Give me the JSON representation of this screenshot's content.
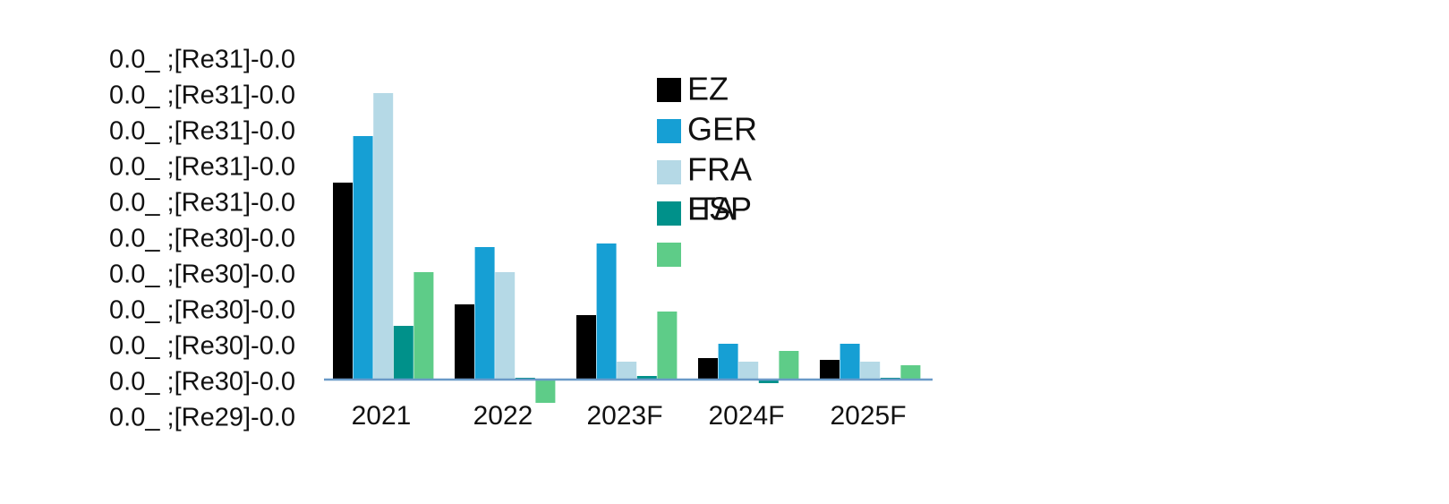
{
  "chart_data": {
    "type": "bar",
    "title": "",
    "xlabel": "",
    "ylabel": "",
    "categories": [
      "2021",
      "2022",
      "2023F",
      "2024F",
      "2025F"
    ],
    "y_tick_labels": [
      "0.0_ ;[Re31]-0.0",
      "0.0_ ;[Re31]-0.0",
      "0.0_ ;[Re31]-0.0",
      "0.0_ ;[Re31]-0.0",
      "0.0_ ;[Re31]-0.0",
      "0.0_ ;[Re30]-0.0",
      "0.0_ ;[Re30]-0.0",
      "0.0_ ;[Re30]-0.0",
      "0.0_ ;[Re30]-0.0",
      "0.0_ ;[Re30]-0.0",
      "0.0_ ;[Re29]-0.0"
    ],
    "ylim": [
      -1,
      9
    ],
    "grid": false,
    "legend_position": "top-center",
    "series": [
      {
        "name": "EZ",
        "color": "#000000",
        "values": [
          5.5,
          2.1,
          1.8,
          0.6,
          0.55
        ]
      },
      {
        "name": "GER",
        "color": "#169FD4",
        "values": [
          6.8,
          3.7,
          3.8,
          1.0,
          1.0
        ]
      },
      {
        "name": "FRA",
        "color": "#B5D9E6",
        "values": [
          8.0,
          3.0,
          0.5,
          0.5,
          0.5
        ]
      },
      {
        "name": "ITA",
        "color": "#00918A",
        "values": [
          1.5,
          0.05,
          0.1,
          -0.1,
          0.05
        ]
      },
      {
        "name": "ESP",
        "color": "#5ECC88",
        "values": [
          3.0,
          -0.65,
          1.9,
          0.8,
          0.4
        ]
      }
    ],
    "axis_color": "#6A9AC8"
  }
}
